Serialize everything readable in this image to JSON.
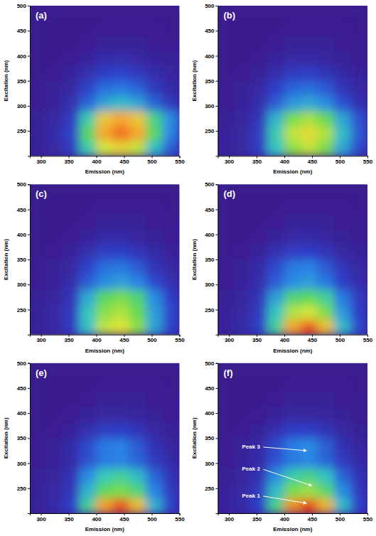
{
  "chart_data": [
    {
      "type": "heatmap",
      "label": "(a)",
      "x_label": "Emission (nm)",
      "y_label": "Excitation (nm)",
      "xlim": [
        280,
        550
      ],
      "ylim": [
        200,
        500
      ],
      "xticks": [
        300,
        350,
        400,
        450,
        500,
        550
      ],
      "yticks": [
        250,
        300,
        350,
        400,
        450,
        500
      ],
      "x": [
        295,
        325,
        355,
        385,
        415,
        445,
        475,
        505,
        535
      ],
      "y": [
        215,
        245,
        275,
        305,
        335,
        365,
        395,
        425,
        455,
        485
      ],
      "zlim": [
        0,
        100
      ],
      "z": [
        [
          3,
          5,
          12,
          45,
          70,
          75,
          68,
          40,
          20
        ],
        [
          3,
          6,
          15,
          55,
          85,
          92,
          85,
          55,
          28
        ],
        [
          2,
          5,
          12,
          45,
          78,
          85,
          78,
          50,
          30
        ],
        [
          1,
          3,
          8,
          22,
          35,
          40,
          35,
          22,
          12
        ],
        [
          1,
          2,
          5,
          15,
          24,
          26,
          22,
          12,
          6
        ],
        [
          0,
          1,
          3,
          8,
          14,
          15,
          12,
          7,
          4
        ],
        [
          0,
          0,
          1,
          3,
          6,
          7,
          5,
          3,
          2
        ],
        [
          0,
          0,
          0,
          1,
          2,
          2,
          2,
          1,
          1
        ],
        [
          0,
          0,
          0,
          0,
          1,
          1,
          1,
          1,
          0
        ],
        [
          0,
          0,
          0,
          0,
          0,
          0,
          0,
          0,
          0
        ]
      ]
    },
    {
      "type": "heatmap",
      "label": "(b)",
      "x_label": "Emission (nm)",
      "y_label": "Excitation (nm)",
      "xlim": [
        280,
        550
      ],
      "ylim": [
        200,
        500
      ],
      "xticks": [
        300,
        350,
        400,
        450,
        500,
        550
      ],
      "yticks": [
        250,
        300,
        350,
        400,
        450,
        500
      ],
      "x": [
        295,
        325,
        355,
        385,
        415,
        445,
        475,
        505,
        535
      ],
      "y": [
        215,
        245,
        275,
        305,
        335,
        365,
        395,
        425,
        455,
        485
      ],
      "zlim": [
        0,
        100
      ],
      "z": [
        [
          3,
          5,
          12,
          42,
          62,
          68,
          60,
          35,
          16
        ],
        [
          3,
          5,
          13,
          45,
          68,
          74,
          66,
          40,
          20
        ],
        [
          2,
          4,
          10,
          38,
          60,
          65,
          58,
          35,
          18
        ],
        [
          1,
          3,
          7,
          20,
          32,
          36,
          30,
          18,
          9
        ],
        [
          1,
          2,
          5,
          14,
          22,
          24,
          20,
          10,
          5
        ],
        [
          0,
          1,
          3,
          7,
          12,
          13,
          10,
          6,
          3
        ],
        [
          0,
          0,
          1,
          3,
          5,
          6,
          4,
          2,
          1
        ],
        [
          0,
          0,
          0,
          1,
          2,
          2,
          2,
          1,
          1
        ],
        [
          0,
          0,
          0,
          0,
          1,
          1,
          1,
          1,
          0
        ],
        [
          0,
          0,
          0,
          0,
          0,
          0,
          0,
          0,
          0
        ]
      ]
    },
    {
      "type": "heatmap",
      "label": "(c)",
      "x_label": "Emission (nm)",
      "y_label": "Excitation (nm)",
      "xlim": [
        280,
        550
      ],
      "ylim": [
        200,
        500
      ],
      "xticks": [
        300,
        350,
        400,
        450,
        500,
        550
      ],
      "yticks": [
        250,
        300,
        350,
        400,
        450,
        500
      ],
      "x": [
        295,
        325,
        355,
        385,
        415,
        445,
        475,
        505,
        535
      ],
      "y": [
        215,
        245,
        275,
        305,
        335,
        365,
        395,
        425,
        455,
        485
      ],
      "zlim": [
        0,
        100
      ],
      "z": [
        [
          3,
          5,
          12,
          42,
          68,
          72,
          62,
          35,
          15
        ],
        [
          3,
          5,
          12,
          42,
          62,
          66,
          58,
          34,
          16
        ],
        [
          2,
          4,
          10,
          36,
          55,
          60,
          52,
          30,
          14
        ],
        [
          1,
          3,
          7,
          20,
          30,
          34,
          28,
          16,
          8
        ],
        [
          1,
          2,
          5,
          15,
          24,
          26,
          20,
          10,
          5
        ],
        [
          0,
          1,
          3,
          8,
          13,
          14,
          10,
          6,
          3
        ],
        [
          0,
          0,
          1,
          3,
          6,
          6,
          4,
          2,
          1
        ],
        [
          0,
          0,
          0,
          1,
          2,
          2,
          2,
          1,
          1
        ],
        [
          0,
          0,
          0,
          0,
          1,
          1,
          1,
          1,
          0
        ],
        [
          0,
          0,
          0,
          0,
          0,
          0,
          0,
          0,
          0
        ]
      ]
    },
    {
      "type": "heatmap",
      "label": "(d)",
      "x_label": "Emission (nm)",
      "y_label": "Excitation (nm)",
      "xlim": [
        280,
        550
      ],
      "ylim": [
        200,
        500
      ],
      "xticks": [
        300,
        350,
        400,
        450,
        500,
        550
      ],
      "yticks": [
        250,
        300,
        350,
        400,
        450,
        500
      ],
      "x": [
        295,
        325,
        355,
        385,
        415,
        445,
        475,
        505,
        535
      ],
      "y": [
        215,
        245,
        275,
        305,
        335,
        365,
        395,
        425,
        455,
        485
      ],
      "zlim": [
        0,
        100
      ],
      "z": [
        [
          3,
          6,
          14,
          48,
          85,
          95,
          80,
          40,
          16
        ],
        [
          3,
          5,
          12,
          42,
          66,
          70,
          60,
          32,
          14
        ],
        [
          2,
          4,
          10,
          34,
          52,
          56,
          48,
          26,
          12
        ],
        [
          1,
          3,
          7,
          20,
          30,
          33,
          26,
          14,
          7
        ],
        [
          1,
          2,
          6,
          16,
          26,
          28,
          20,
          10,
          5
        ],
        [
          0,
          1,
          3,
          8,
          13,
          14,
          10,
          5,
          3
        ],
        [
          0,
          0,
          1,
          3,
          5,
          6,
          4,
          2,
          1
        ],
        [
          0,
          0,
          0,
          1,
          2,
          2,
          2,
          1,
          1
        ],
        [
          0,
          0,
          0,
          0,
          1,
          1,
          1,
          1,
          0
        ],
        [
          0,
          0,
          0,
          0,
          0,
          0,
          0,
          0,
          0
        ]
      ]
    },
    {
      "type": "heatmap",
      "label": "(e)",
      "x_label": "Emission (nm)",
      "y_label": "Excitation (nm)",
      "xlim": [
        280,
        550
      ],
      "ylim": [
        200,
        500
      ],
      "xticks": [
        300,
        350,
        400,
        450,
        500,
        550
      ],
      "yticks": [
        250,
        300,
        350,
        400,
        450,
        500
      ],
      "x": [
        295,
        325,
        355,
        385,
        415,
        445,
        475,
        505,
        535
      ],
      "y": [
        215,
        245,
        275,
        305,
        335,
        365,
        395,
        425,
        455,
        485
      ],
      "zlim": [
        0,
        100
      ],
      "z": [
        [
          3,
          6,
          14,
          48,
          86,
          96,
          80,
          38,
          15
        ],
        [
          3,
          5,
          11,
          38,
          56,
          60,
          52,
          28,
          12
        ],
        [
          2,
          4,
          9,
          30,
          44,
          48,
          40,
          22,
          10
        ],
        [
          1,
          3,
          6,
          18,
          26,
          28,
          22,
          12,
          6
        ],
        [
          1,
          2,
          6,
          16,
          26,
          28,
          20,
          9,
          4
        ],
        [
          0,
          1,
          3,
          8,
          13,
          14,
          10,
          5,
          2
        ],
        [
          0,
          0,
          1,
          3,
          5,
          5,
          4,
          2,
          1
        ],
        [
          0,
          0,
          0,
          1,
          2,
          2,
          2,
          1,
          1
        ],
        [
          0,
          0,
          0,
          0,
          1,
          1,
          1,
          1,
          0
        ],
        [
          0,
          0,
          0,
          0,
          0,
          0,
          0,
          0,
          0
        ]
      ]
    },
    {
      "type": "heatmap",
      "label": "(f)",
      "x_label": "Emission (nm)",
      "y_label": "Excitation (nm)",
      "xlim": [
        280,
        550
      ],
      "ylim": [
        200,
        500
      ],
      "xticks": [
        300,
        350,
        400,
        450,
        500,
        550
      ],
      "yticks": [
        250,
        300,
        350,
        400,
        450,
        500
      ],
      "x": [
        295,
        325,
        355,
        385,
        415,
        445,
        475,
        505,
        535
      ],
      "y": [
        215,
        245,
        275,
        305,
        335,
        365,
        395,
        425,
        455,
        485
      ],
      "zlim": [
        0,
        100
      ],
      "z": [
        [
          3,
          6,
          14,
          50,
          88,
          97,
          82,
          40,
          15
        ],
        [
          3,
          5,
          12,
          40,
          60,
          64,
          54,
          30,
          12
        ],
        [
          2,
          4,
          9,
          30,
          46,
          50,
          42,
          22,
          10
        ],
        [
          1,
          3,
          6,
          18,
          26,
          29,
          22,
          12,
          6
        ],
        [
          1,
          2,
          6,
          16,
          27,
          30,
          21,
          9,
          4
        ],
        [
          0,
          1,
          3,
          8,
          14,
          14,
          10,
          5,
          2
        ],
        [
          0,
          0,
          1,
          3,
          5,
          5,
          4,
          2,
          1
        ],
        [
          0,
          0,
          0,
          1,
          2,
          2,
          2,
          1,
          1
        ],
        [
          0,
          0,
          0,
          0,
          1,
          1,
          1,
          1,
          0
        ],
        [
          0,
          0,
          0,
          0,
          0,
          0,
          0,
          0,
          0
        ]
      ],
      "annotations": [
        {
          "text": "Peak 3",
          "x": 440,
          "y": 325
        },
        {
          "text": "Peak 2",
          "x": 450,
          "y": 255
        },
        {
          "text": "Peak 1",
          "x": 440,
          "y": 220
        }
      ]
    }
  ]
}
